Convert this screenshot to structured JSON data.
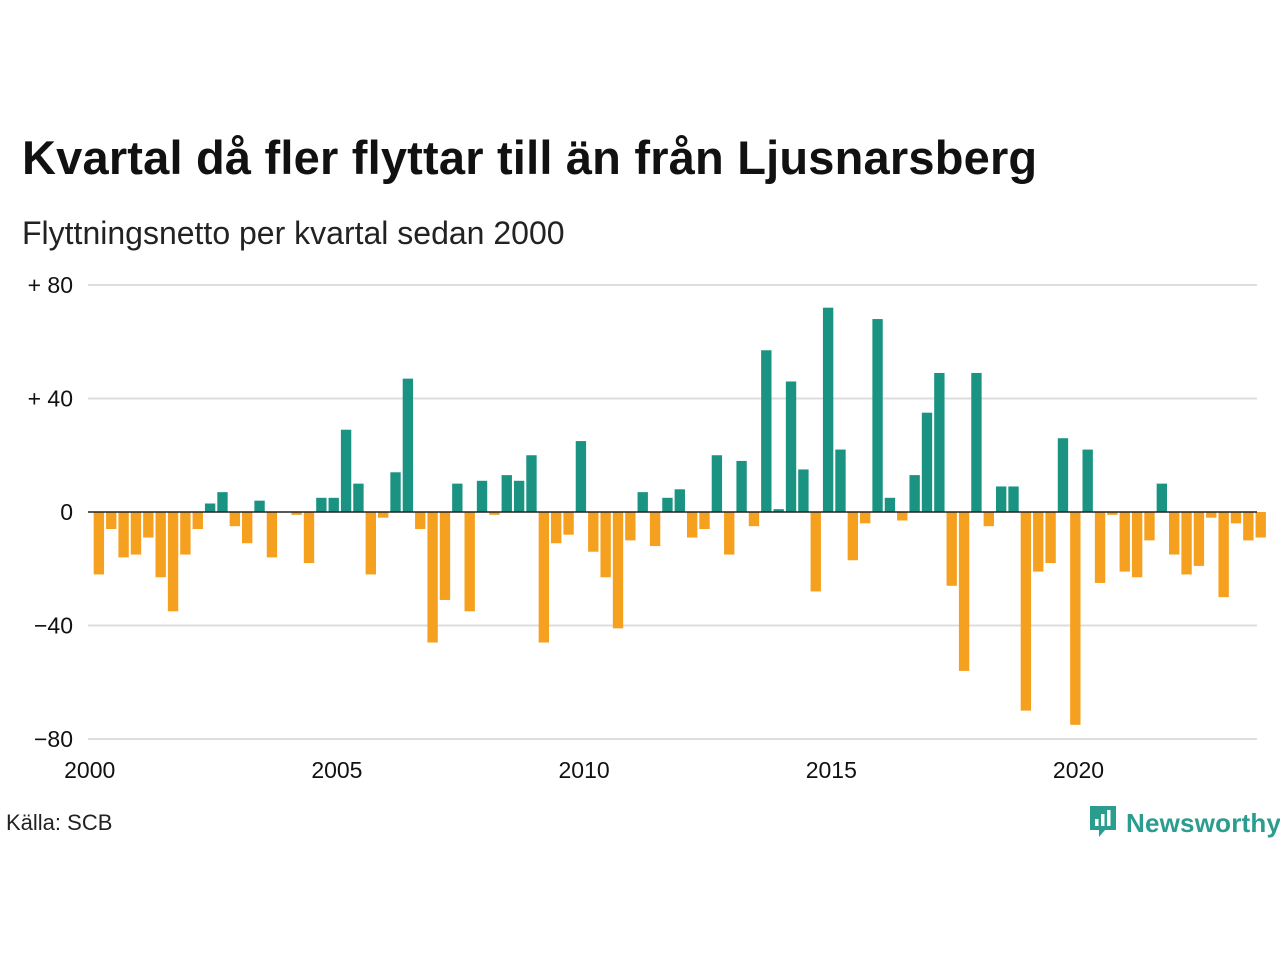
{
  "header": {
    "title": "Kvartal då fler flyttar till än från Ljusnarsberg",
    "subtitle": "Flyttningsnetto per kvartal sedan 2000"
  },
  "footer": {
    "source": "Källa: SCB",
    "brand": "Newsworthy"
  },
  "colors": {
    "positive": "#1a9383",
    "negative": "#f5a01e",
    "grid": "#dddddd",
    "baseline": "#222222",
    "brand": "#2a9d8f"
  },
  "chart_data": {
    "type": "bar",
    "title": "Kvartal då fler flyttar till än från Ljusnarsberg",
    "subtitle": "Flyttningsnetto per kvartal sedan 2000",
    "ylim": [
      -80,
      80
    ],
    "yticks": [
      80,
      40,
      0,
      -40,
      -80
    ],
    "ytick_labels": [
      "+ 80",
      "+ 40",
      "0",
      "−40",
      "−80"
    ],
    "xticks": [
      2000,
      2005,
      2010,
      2015,
      2020
    ],
    "xtick_labels": [
      "2000",
      "2005",
      "2010",
      "2015",
      "2020"
    ],
    "x_start": "2000Q1",
    "grid": true,
    "values": [
      -22,
      -6,
      -16,
      -15,
      -9,
      -23,
      -35,
      -15,
      -6,
      3,
      7,
      -5,
      -11,
      4,
      -16,
      0,
      -1,
      -18,
      5,
      5,
      29,
      10,
      -22,
      -2,
      14,
      47,
      -6,
      -46,
      -31,
      10,
      -35,
      11,
      -1,
      13,
      11,
      20,
      -46,
      -11,
      -8,
      25,
      -14,
      -23,
      -41,
      -10,
      7,
      -12,
      5,
      8,
      -9,
      -6,
      20,
      -15,
      18,
      -5,
      57,
      1,
      46,
      15,
      -28,
      72,
      22,
      -17,
      -4,
      68,
      5,
      -3,
      13,
      35,
      49,
      -26,
      -56,
      49,
      -5,
      9,
      9,
      -70,
      -21,
      -18,
      26,
      -75,
      22,
      -25,
      -1,
      -21,
      -23,
      -10,
      10,
      -15,
      -22,
      -19,
      -2,
      -30,
      -4,
      -10,
      -9
    ]
  }
}
